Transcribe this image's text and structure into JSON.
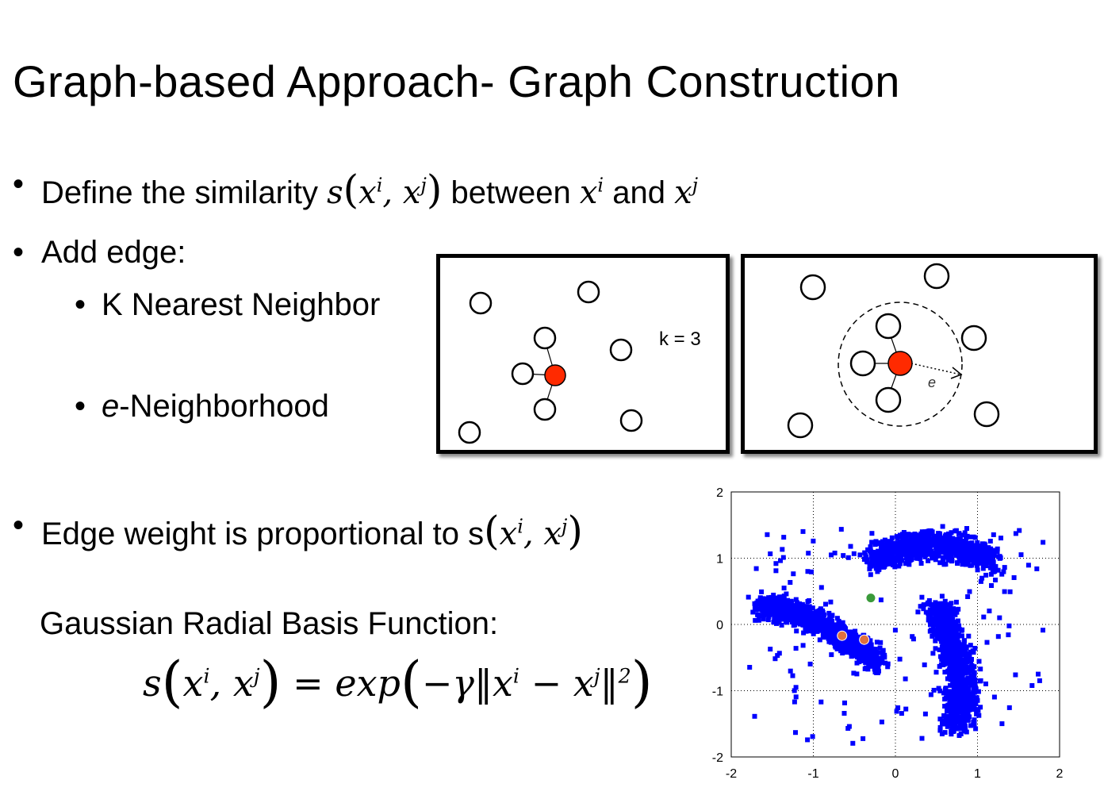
{
  "title": "Graph-based Approach- Graph Construction",
  "bullets": {
    "define_prefix": "Define the similarity ",
    "define_between": " between ",
    "define_and": " and ",
    "add_edge": "Add edge:",
    "knn": "K Nearest Neighbor",
    "eneigh_e": "e",
    "eneigh_rest": "-Neighborhood",
    "edge_weight": "Edge weight is proportional to s",
    "gaussian": "Gaussian Radial Basis Function:"
  },
  "math": {
    "s": "s",
    "x": "x",
    "i": "i",
    "j": "j",
    "comma": ", ",
    "equals": " = ",
    "exp": "exp",
    "minus_gamma": "−γ",
    "minus": " − ",
    "two": "2"
  },
  "knn_panel": {
    "label": "k = 3"
  },
  "eps_panel": {
    "label": "e"
  },
  "chart_data": {
    "type": "scatter",
    "xlim": [
      -2,
      2
    ],
    "ylim": [
      -2,
      2
    ],
    "x_ticks": [
      "-2",
      "-1",
      "0",
      "1",
      "2"
    ],
    "y_ticks": [
      "2",
      "1",
      "0",
      "-1",
      "-2"
    ],
    "grid": true,
    "point_color": "#0000ff",
    "highlight": [
      {
        "x": -0.3,
        "y": 0.4,
        "color": "#3a9a3a"
      },
      {
        "x": -0.65,
        "y": -0.17,
        "color": "#e07040"
      },
      {
        "x": -0.38,
        "y": -0.23,
        "color": "#e07040"
      }
    ]
  },
  "colors": {
    "center_node": "#ff2a00",
    "points": "#0000ff"
  }
}
